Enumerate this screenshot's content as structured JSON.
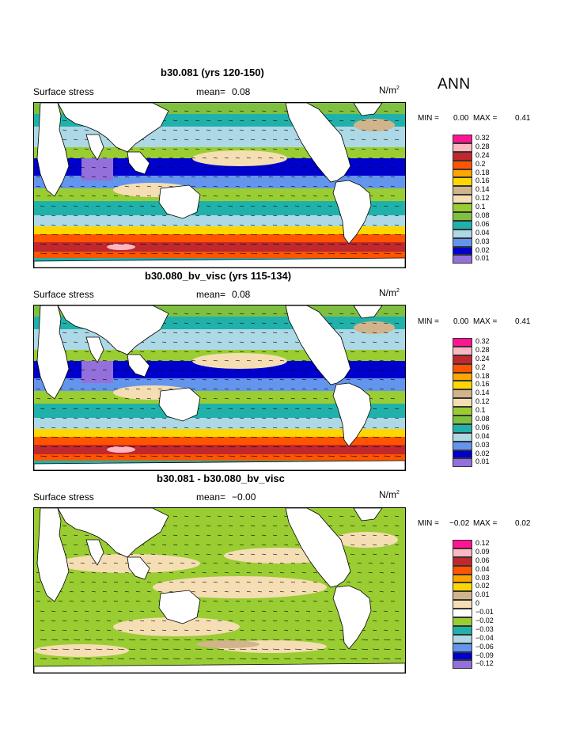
{
  "season": "ANN",
  "units_text": "N/m",
  "units_sup": "2",
  "panels": [
    {
      "title": "b30.081 (yrs 120-150)",
      "variable": "Surface stress",
      "mean_label": "mean=",
      "mean_value": "0.08",
      "min_label": "MIN =",
      "min_value": "0.00",
      "max_label": "MAX =",
      "max_value": "0.41",
      "legend": [
        "0.32",
        "0.28",
        "0.24",
        "0.2",
        "0.18",
        "0.16",
        "0.14",
        "0.12",
        "0.1",
        "0.08",
        "0.06",
        "0.04",
        "0.03",
        "0.02",
        "0.01"
      ],
      "colors": [
        "#ff1493",
        "#ffb6c1",
        "#c0282d",
        "#ff5500",
        "#ffa500",
        "#ffd700",
        "#d2b48c",
        "#f5deb3",
        "#9acd32",
        "#80c040",
        "#20b2aa",
        "#add8e6",
        "#6495ed",
        "#0000cd",
        "#9370db"
      ]
    },
    {
      "title": "b30.080_bv_visc (yrs 115-134)",
      "variable": "Surface stress",
      "mean_label": "mean=",
      "mean_value": "0.08",
      "min_label": "MIN =",
      "min_value": "0.00",
      "max_label": "MAX =",
      "max_value": "0.41",
      "legend": [
        "0.32",
        "0.28",
        "0.24",
        "0.2",
        "0.18",
        "0.16",
        "0.14",
        "0.12",
        "0.1",
        "0.08",
        "0.06",
        "0.04",
        "0.03",
        "0.02",
        "0.01"
      ],
      "colors": [
        "#ff1493",
        "#ffb6c1",
        "#c0282d",
        "#ff5500",
        "#ffa500",
        "#ffd700",
        "#d2b48c",
        "#f5deb3",
        "#9acd32",
        "#80c040",
        "#20b2aa",
        "#add8e6",
        "#6495ed",
        "#0000cd",
        "#9370db"
      ]
    },
    {
      "title": "b30.081 - b30.080_bv_visc",
      "variable": "Surface stress",
      "mean_label": "mean=",
      "mean_value": "−0.00",
      "min_label": "MIN =",
      "min_value": "−0.02",
      "max_label": "MAX =",
      "max_value": "0.02",
      "legend": [
        "0.12",
        "0.09",
        "0.06",
        "0.04",
        "0.03",
        "0.02",
        "0.01",
        "0",
        "−0.01",
        "−0.02",
        "−0.03",
        "−0.04",
        "−0.06",
        "−0.09",
        "−0.12"
      ],
      "colors": [
        "#ff1493",
        "#ffb6c1",
        "#c0282d",
        "#ff5500",
        "#ffa500",
        "#ffd700",
        "#d2b48c",
        "#f5deb3",
        "#ffffff",
        "#9acd32",
        "#20b2aa",
        "#add8e6",
        "#6495ed",
        "#0000cd",
        "#9370db"
      ]
    }
  ],
  "chart_data": [
    {
      "type": "heatmap",
      "title": "b30.081 (yrs 120-150)",
      "variable": "Surface stress",
      "units": "N/m2",
      "mean": 0.08,
      "min": 0.0,
      "max": 0.41,
      "levels": [
        0.01,
        0.02,
        0.03,
        0.04,
        0.06,
        0.08,
        0.1,
        0.12,
        0.14,
        0.16,
        0.18,
        0.2,
        0.24,
        0.28,
        0.32
      ],
      "vectors": true
    },
    {
      "type": "heatmap",
      "title": "b30.080_bv_visc (yrs 115-134)",
      "variable": "Surface stress",
      "units": "N/m2",
      "mean": 0.08,
      "min": 0.0,
      "max": 0.41,
      "levels": [
        0.01,
        0.02,
        0.03,
        0.04,
        0.06,
        0.08,
        0.1,
        0.12,
        0.14,
        0.16,
        0.18,
        0.2,
        0.24,
        0.28,
        0.32
      ],
      "vectors": true
    },
    {
      "type": "heatmap",
      "title": "b30.081 - b30.080_bv_visc",
      "variable": "Surface stress",
      "units": "N/m2",
      "mean": -0.0,
      "min": -0.02,
      "max": 0.02,
      "levels": [
        -0.12,
        -0.09,
        -0.06,
        -0.04,
        -0.03,
        -0.02,
        -0.01,
        0,
        0.01,
        0.02,
        0.03,
        0.04,
        0.06,
        0.09,
        0.12
      ],
      "vectors": true
    }
  ]
}
